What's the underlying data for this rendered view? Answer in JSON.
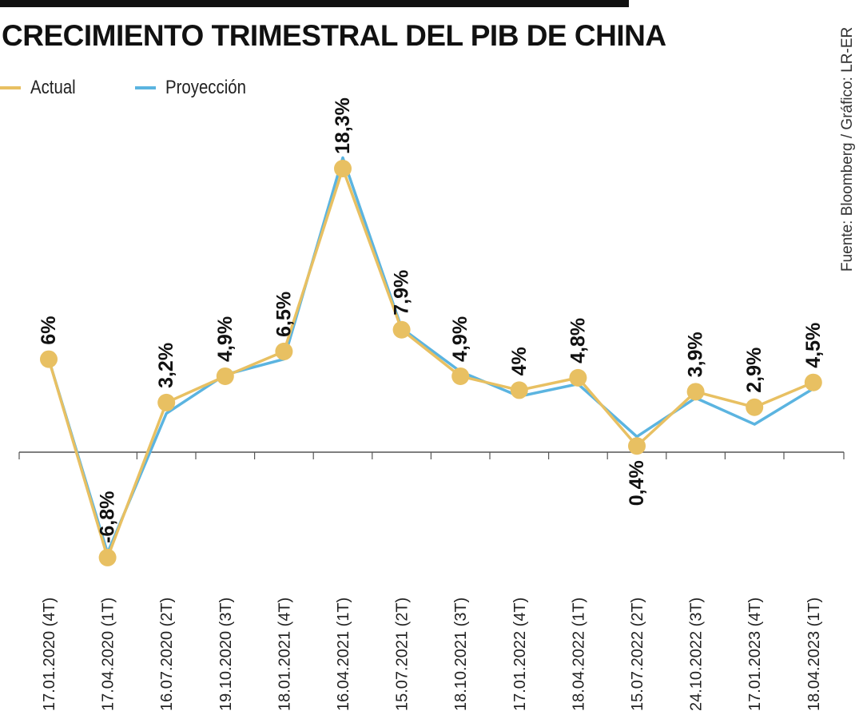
{
  "title": "CRECIMIENTO TRIMESTRAL DEL PIB DE CHINA",
  "source": "Fuente: Bloomberg / Gráfico: LR-ER",
  "colors": {
    "actual": "#E8C062",
    "proyeccion": "#5BB4E0",
    "axis": "#555555"
  },
  "chart_data": {
    "type": "line",
    "categories": [
      "17.01.2020 (4T)",
      "17.04.2020 (1T)",
      "16.07.2020 (2T)",
      "19.10.2020 (3T)",
      "18.01.2021 (4T)",
      "16.04.2021 (1T)",
      "15.07.2021 (2T)",
      "18.10.2021 (3T)",
      "17.01.2022 (4T)",
      "18.04.2022 (1T)",
      "15.07.2022 (2T)",
      "24.10.2022 (3T)",
      "17.01.2023 (4T)",
      "18.04.2023 (1T)"
    ],
    "series": [
      {
        "name": "Actual",
        "values": [
          6.0,
          -6.8,
          3.2,
          4.9,
          6.5,
          18.3,
          7.9,
          4.9,
          4.0,
          4.8,
          0.4,
          3.9,
          2.9,
          4.5
        ],
        "labels": [
          "6%",
          "-6,8%",
          "3,2%",
          "4,9%",
          "6,5%",
          "18,3%",
          "7,9%",
          "4,9%",
          "4%",
          "4,8%",
          "0,4%",
          "3,9%",
          "2,9%",
          "4,5%"
        ]
      },
      {
        "name": "Proyección",
        "values": [
          6.0,
          -6.5,
          2.5,
          5.0,
          6.0,
          19.0,
          8.0,
          5.2,
          3.6,
          4.4,
          1.0,
          3.5,
          1.8,
          4.1
        ]
      }
    ],
    "ylim": [
      -8.8,
      20.9
    ],
    "grid": false,
    "legend": "top-left"
  }
}
